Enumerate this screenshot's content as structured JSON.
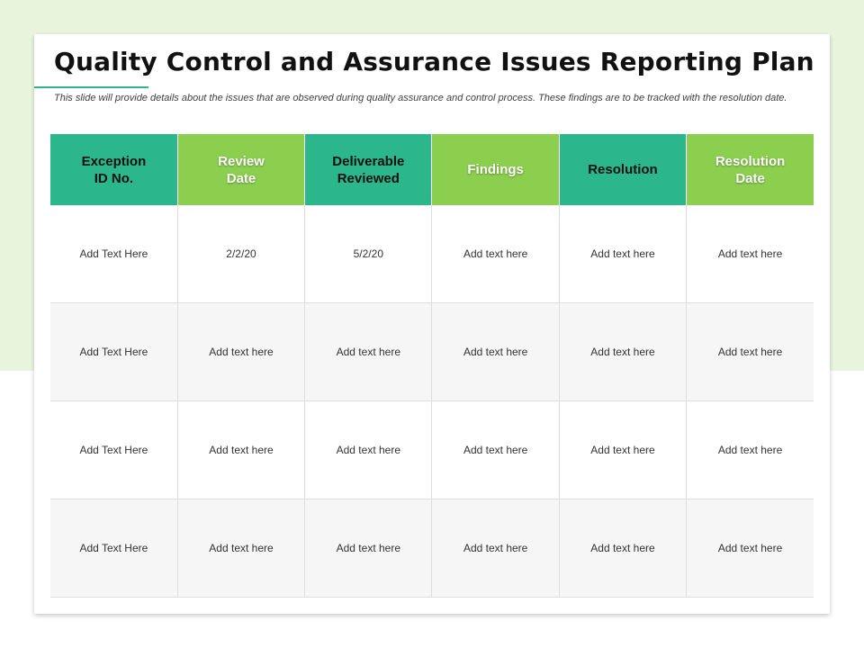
{
  "slide": {
    "title": "Quality Control and Assurance Issues Reporting Plan",
    "subtitle": "This slide will provide details about the issues that are observed during quality assurance and control process. These findings are to be tracked with the resolution date."
  },
  "colors": {
    "background_band": "#e8f5dc",
    "header_dark_green": "#2cb68b",
    "header_light_green": "#8ccf4f"
  },
  "table": {
    "headers": [
      "Exception\nID No.",
      "Review\nDate",
      "Deliverable\nReviewed",
      "Findings",
      "Resolution",
      "Resolution\nDate"
    ],
    "rows": [
      [
        "Add Text Here",
        "2/2/20",
        "5/2/20",
        "Add text here",
        "Add text here",
        "Add text here"
      ],
      [
        "Add Text Here",
        "Add text here",
        "Add text here",
        "Add text here",
        "Add text here",
        "Add text here"
      ],
      [
        "Add Text Here",
        "Add text here",
        "Add text here",
        "Add text here",
        "Add text here",
        "Add text here"
      ],
      [
        "Add Text Here",
        "Add text here",
        "Add text here",
        "Add text here",
        "Add text here",
        "Add text here"
      ]
    ]
  }
}
